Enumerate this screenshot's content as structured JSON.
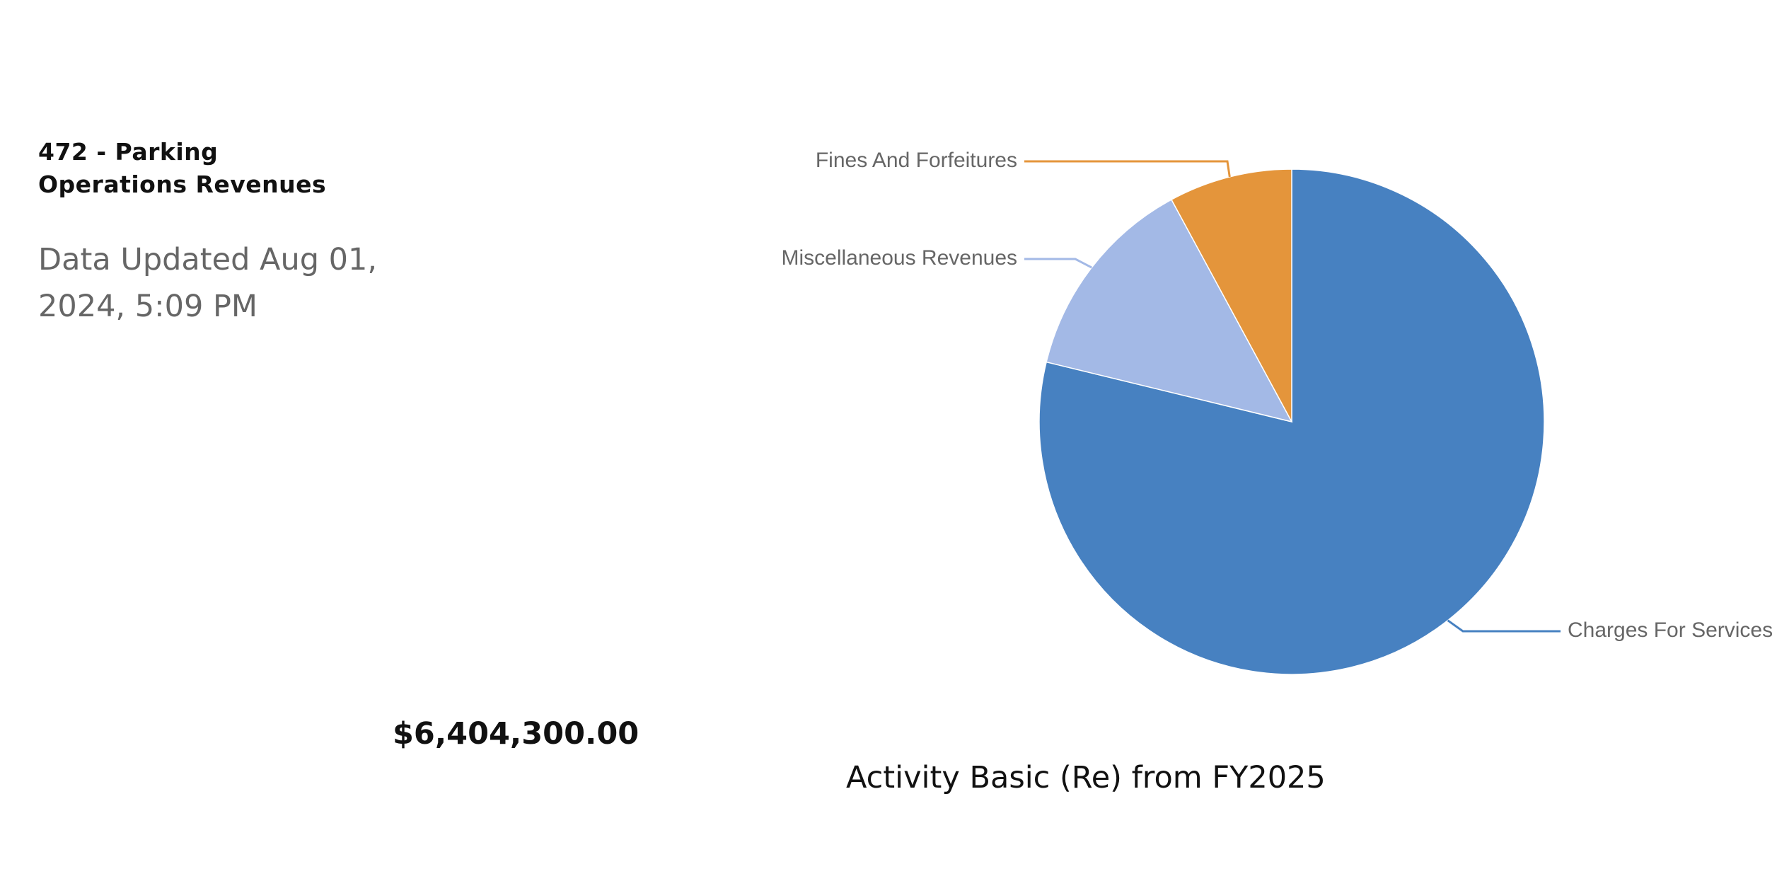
{
  "panel": {
    "title": "472 - Parking Operations Revenues",
    "updated": "Data Updated Aug 01, 2024, 5:09 PM",
    "total": "$6,404,300.00"
  },
  "chart_data": {
    "type": "pie",
    "title": "Activity Basic (Re) from FY2025",
    "slices": [
      {
        "label": "Charges For Services",
        "value": 78.8,
        "color": "#4781c1"
      },
      {
        "label": "Miscellaneous Revenues",
        "value": 13.3,
        "color": "#a3b9e6"
      },
      {
        "label": "Fines And Forfeitures",
        "value": 7.9,
        "color": "#e4953b"
      }
    ]
  }
}
